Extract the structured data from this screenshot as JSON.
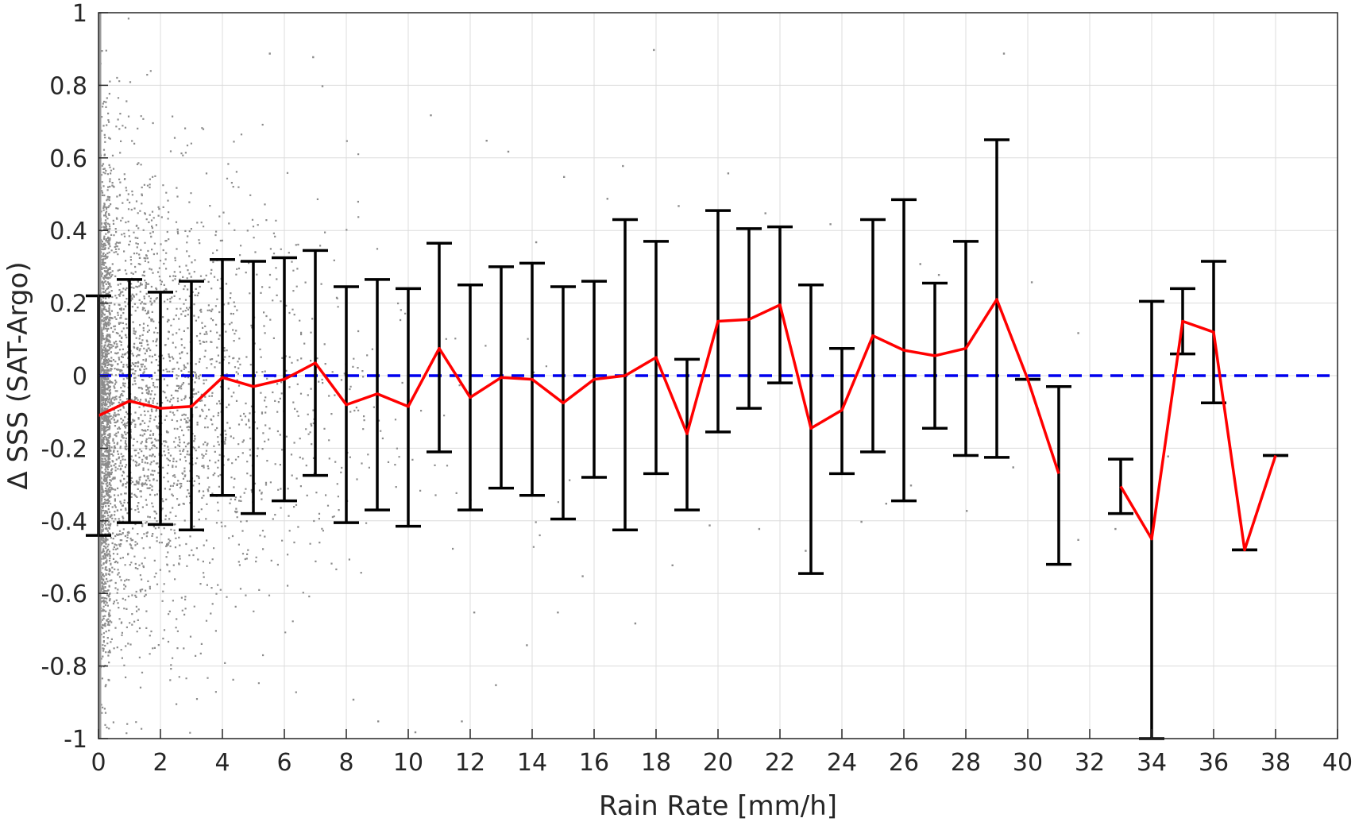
{
  "chart_data": {
    "type": "scatter",
    "xlabel": "Rain Rate [mm/h]",
    "ylabel": "Δ SSS (SAT-Argo)",
    "xlim": [
      0,
      40
    ],
    "ylim": [
      -1,
      1
    ],
    "x_ticks": [
      0,
      2,
      4,
      6,
      8,
      10,
      12,
      14,
      16,
      18,
      20,
      22,
      24,
      26,
      28,
      30,
      32,
      34,
      36,
      38,
      40
    ],
    "y_ticks": [
      -1,
      -0.8,
      -0.6,
      -0.4,
      -0.2,
      0,
      0.2,
      0.4,
      0.6,
      0.8,
      1
    ],
    "y_tick_labels": [
      "-1",
      "-0.8",
      "-0.6",
      "-0.4",
      "-0.2",
      "0",
      "0.2",
      "0.4",
      "0.6",
      "0.8",
      "1"
    ],
    "grid": true,
    "zero_line": {
      "y": 0,
      "color": "#0000ee",
      "style": "dashed"
    },
    "scatter": {
      "color": "#8c8c8c",
      "description_dense_region": "dense cloud of points near 0–4 mm/h spanning -1 to 1, thinning with increasing rain rate",
      "sparse_points": [
        [
          5.5,
          0.89
        ],
        [
          6.9,
          0.88
        ],
        [
          7.2,
          0.8
        ],
        [
          10.7,
          0.72
        ],
        [
          17.9,
          0.9
        ],
        [
          29.2,
          0.89
        ],
        [
          12.5,
          0.65
        ],
        [
          13.2,
          0.62
        ],
        [
          15.0,
          0.55
        ],
        [
          16.4,
          0.49
        ],
        [
          18.7,
          0.47
        ],
        [
          20.3,
          0.56
        ],
        [
          21.5,
          0.45
        ],
        [
          23.6,
          0.42
        ],
        [
          26.5,
          0.31
        ],
        [
          27.1,
          0.28
        ],
        [
          30.1,
          0.26
        ],
        [
          31.6,
          0.12
        ],
        [
          34.5,
          -0.22
        ],
        [
          31.6,
          -0.45
        ],
        [
          28.0,
          -0.37
        ],
        [
          25.4,
          -0.35
        ],
        [
          22.8,
          -0.48
        ],
        [
          24.6,
          -0.4
        ],
        [
          19.7,
          -0.41
        ],
        [
          21.3,
          -0.42
        ],
        [
          17.3,
          -0.68
        ],
        [
          14.8,
          -0.65
        ],
        [
          12.1,
          -0.65
        ],
        [
          11.7,
          -0.95
        ],
        [
          10.2,
          -0.98
        ],
        [
          9.0,
          -0.95
        ],
        [
          8.2,
          -0.89
        ],
        [
          13.8,
          -0.74
        ],
        [
          12.8,
          -0.85
        ],
        [
          32.8,
          -0.42
        ],
        [
          15.6,
          -0.55
        ],
        [
          18.5,
          -0.52
        ],
        [
          26.2,
          -0.3
        ],
        [
          29.5,
          -0.25
        ],
        [
          16.9,
          0.58
        ],
        [
          14.1,
          0.37
        ]
      ]
    },
    "mean_series": {
      "name": "",
      "color": "#ff0000",
      "points": [
        [
          0,
          -0.11
        ],
        [
          1,
          -0.07
        ],
        [
          2,
          -0.09
        ],
        [
          3,
          -0.085
        ],
        [
          4,
          -0.005
        ],
        [
          5,
          -0.03
        ],
        [
          6,
          -0.01
        ],
        [
          7,
          0.035
        ],
        [
          8,
          -0.08
        ],
        [
          9,
          -0.05
        ],
        [
          10,
          -0.085
        ],
        [
          11,
          0.075
        ],
        [
          12,
          -0.06
        ],
        [
          13,
          -0.005
        ],
        [
          14,
          -0.01
        ],
        [
          15,
          -0.075
        ],
        [
          16,
          -0.01
        ],
        [
          17,
          0.0
        ],
        [
          18,
          0.05
        ],
        [
          19,
          -0.16
        ],
        [
          20,
          0.15
        ],
        [
          21,
          0.155
        ],
        [
          22,
          0.195
        ],
        [
          23,
          -0.145
        ],
        [
          24,
          -0.095
        ],
        [
          25,
          0.11
        ],
        [
          26,
          0.07
        ],
        [
          27,
          0.055
        ],
        [
          28,
          0.075
        ],
        [
          29,
          0.21
        ],
        [
          30,
          -0.01
        ],
        [
          31,
          -0.27
        ],
        null,
        [
          33,
          -0.305
        ],
        [
          34,
          -0.45
        ],
        [
          35,
          0.15
        ],
        [
          36,
          0.12
        ],
        [
          37,
          -0.48
        ],
        [
          38,
          -0.22
        ]
      ]
    },
    "error_bars": {
      "color": "#000000",
      "bars": [
        [
          0,
          -0.44,
          0.22
        ],
        [
          1,
          -0.405,
          0.265
        ],
        [
          2,
          -0.41,
          0.23
        ],
        [
          3,
          -0.425,
          0.26
        ],
        [
          4,
          -0.33,
          0.32
        ],
        [
          5,
          -0.38,
          0.315
        ],
        [
          6,
          -0.345,
          0.325
        ],
        [
          7,
          -0.275,
          0.345
        ],
        [
          8,
          -0.405,
          0.245
        ],
        [
          9,
          -0.37,
          0.265
        ],
        [
          10,
          -0.415,
          0.24
        ],
        [
          11,
          -0.21,
          0.365
        ],
        [
          12,
          -0.37,
          0.25
        ],
        [
          13,
          -0.31,
          0.3
        ],
        [
          14,
          -0.33,
          0.31
        ],
        [
          15,
          -0.395,
          0.245
        ],
        [
          16,
          -0.28,
          0.26
        ],
        [
          17,
          -0.425,
          0.43
        ],
        [
          18,
          -0.27,
          0.37
        ],
        [
          19,
          -0.37,
          0.045
        ],
        [
          20,
          -0.155,
          0.455
        ],
        [
          21,
          -0.09,
          0.405
        ],
        [
          22,
          -0.02,
          0.41
        ],
        [
          23,
          -0.545,
          0.25
        ],
        [
          24,
          -0.27,
          0.075
        ],
        [
          25,
          -0.21,
          0.43
        ],
        [
          26,
          -0.345,
          0.485
        ],
        [
          27,
          -0.145,
          0.255
        ],
        [
          28,
          -0.22,
          0.37
        ],
        [
          29,
          -0.225,
          0.65
        ],
        [
          30,
          -0.01,
          -0.01
        ],
        [
          31,
          -0.52,
          -0.03
        ],
        [
          33,
          -0.38,
          -0.23
        ],
        [
          34,
          -1.0,
          0.205
        ],
        [
          35,
          0.06,
          0.24
        ],
        [
          36,
          -0.075,
          0.315
        ],
        [
          37,
          -0.48,
          -0.48
        ],
        [
          38,
          -0.22,
          -0.22
        ]
      ]
    }
  }
}
